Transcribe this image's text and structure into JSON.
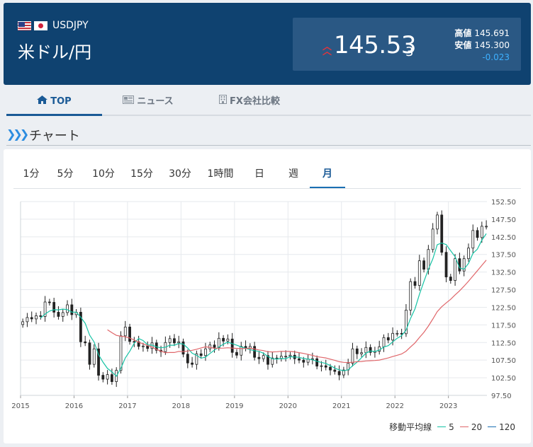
{
  "header": {
    "pair_code": "USDJPY",
    "pair_name": "米ドル/円",
    "price_main": "145.53",
    "price_small": "3",
    "high_label": "高値",
    "high_value": "145.691",
    "low_label": "安値",
    "low_value": "145.300",
    "change": "-0.023",
    "colors": {
      "bg": "#0f4270",
      "up_arrow": "#e0353d",
      "change": "#3db0ff"
    }
  },
  "tabs": [
    {
      "label": "TOP",
      "icon": "home-icon"
    },
    {
      "label": "ニュース",
      "icon": "news-icon"
    },
    {
      "label": "FX会社比較",
      "icon": "building-icon"
    }
  ],
  "section": {
    "title": "チャート",
    "icon": "chevrons-right-icon"
  },
  "periods": [
    "1分",
    "5分",
    "10分",
    "15分",
    "30分",
    "1時間",
    "日",
    "週",
    "月"
  ],
  "active_period": "月",
  "legend": {
    "label": "移動平均線",
    "items": [
      {
        "label": "5",
        "color": "#16c3a5"
      },
      {
        "label": "20",
        "color": "#e0666a"
      },
      {
        "label": "120",
        "color": "#1a6fb3"
      }
    ]
  },
  "chart_data": {
    "type": "candlestick",
    "interval": "monthly",
    "x_tick_labels": [
      "2015",
      "2016",
      "2017",
      "2018",
      "2019",
      "2020",
      "2021",
      "2022",
      "2023"
    ],
    "y_tick_labels": [
      "152.50",
      "147.50",
      "142.50",
      "137.50",
      "132.50",
      "127.50",
      "122.50",
      "117.50",
      "112.50",
      "107.50",
      "102.50",
      "97.50"
    ],
    "ylim": [
      97.5,
      152.5
    ],
    "x_start": 2015.0,
    "x_end": 2023.72,
    "closes": [
      118.4,
      119.6,
      119.2,
      120.1,
      119.9,
      124.0,
      123.9,
      121.1,
      119.9,
      121.0,
      123.2,
      120.4,
      121.1,
      112.7,
      112.4,
      106.3,
      110.7,
      103.2,
      102.1,
      103.4,
      101.4,
      104.6,
      114.4,
      116.9,
      112.8,
      112.7,
      111.4,
      111.5,
      110.8,
      112.4,
      110.3,
      109.9,
      112.5,
      113.6,
      112.4,
      112.7,
      109.2,
      106.7,
      106.3,
      109.3,
      108.8,
      110.7,
      111.8,
      111.1,
      113.7,
      112.9,
      113.5,
      109.7,
      108.9,
      111.4,
      110.9,
      111.4,
      108.3,
      107.9,
      108.8,
      106.3,
      108.1,
      108.0,
      108.6,
      108.6,
      108.9,
      107.9,
      107.5,
      106.9,
      107.8,
      107.9,
      105.8,
      105.9,
      105.5,
      104.7,
      104.3,
      103.3,
      104.7,
      106.6,
      110.7,
      109.3,
      109.6,
      111.1,
      109.7,
      110.0,
      111.3,
      113.9,
      113.2,
      115.1,
      115.1,
      115.0,
      121.7,
      129.8,
      128.7,
      135.7,
      133.3,
      138.9,
      144.7,
      148.7,
      138.1,
      131.1,
      130.1,
      136.3,
      132.8,
      136.3,
      139.3,
      144.3,
      142.3,
      145.5,
      145.5
    ],
    "series": [
      {
        "name": "5",
        "color": "#16c3a5"
      },
      {
        "name": "20",
        "color": "#e0666a"
      },
      {
        "name": "120",
        "color": "#1a6fb3"
      }
    ],
    "up_color": "#ffffff",
    "down_color": "#222222",
    "grid": true
  }
}
